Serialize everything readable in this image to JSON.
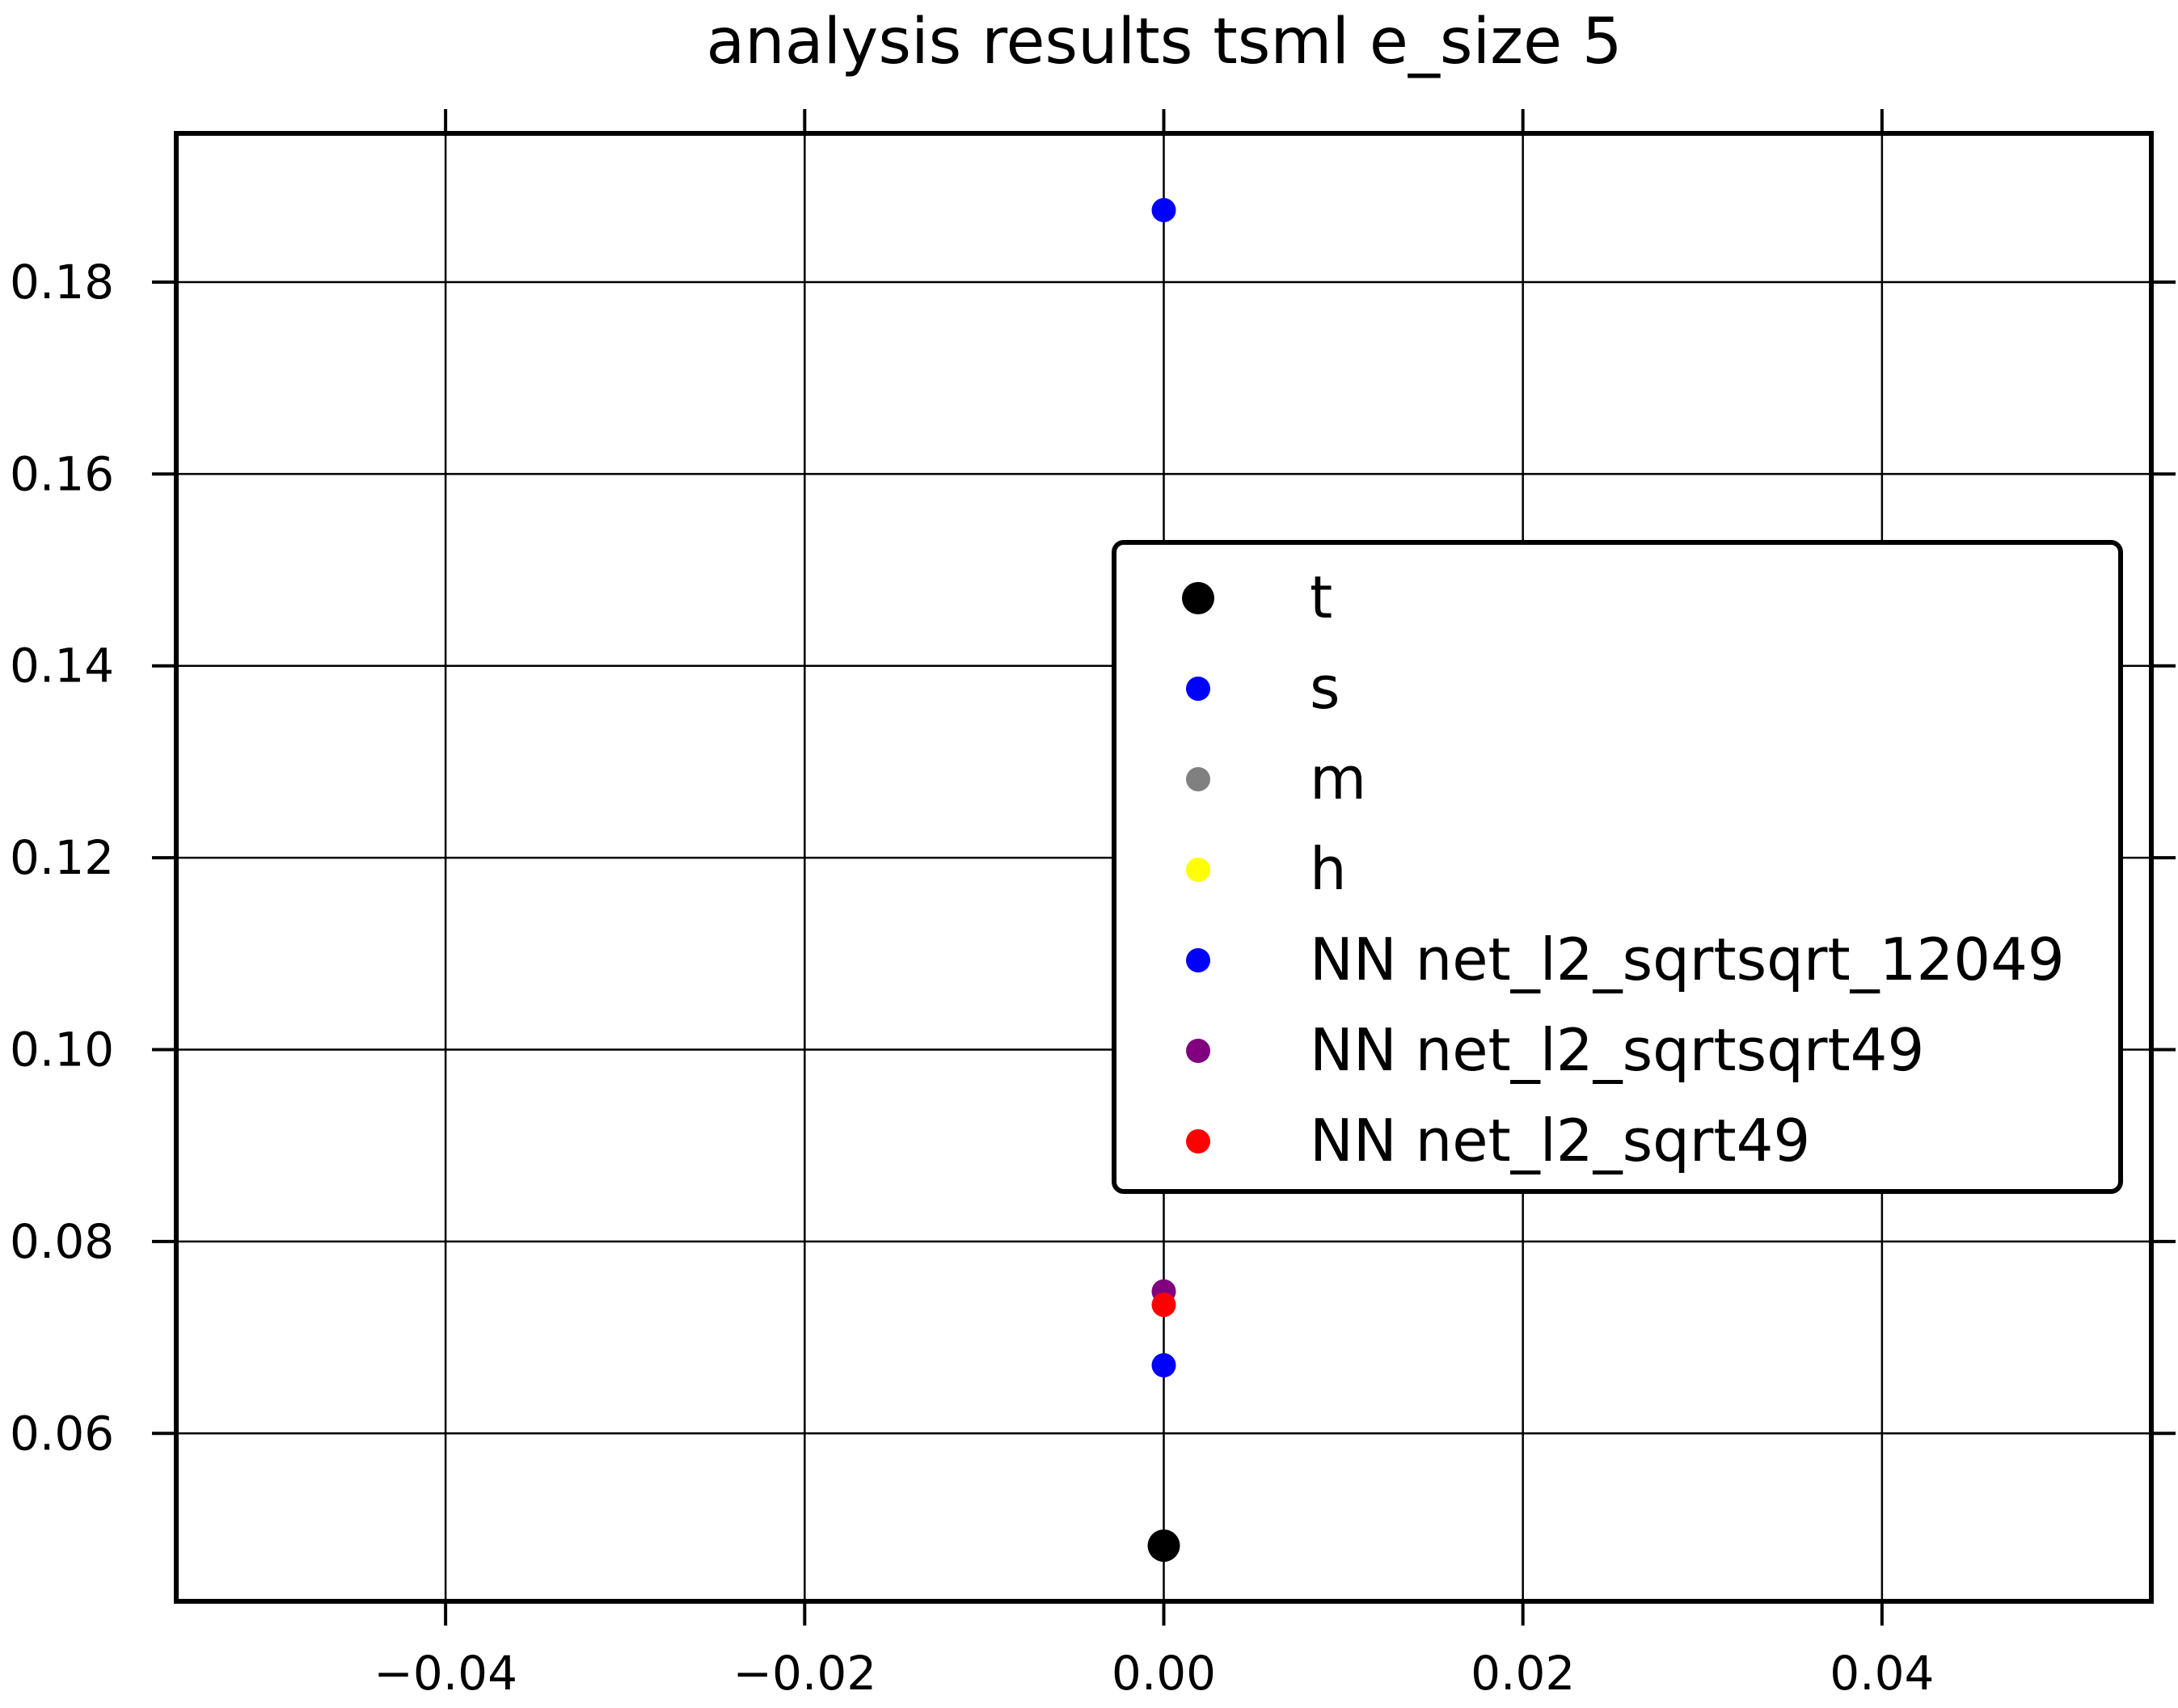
{
  "chart_data": {
    "type": "scatter",
    "title": "analysis results tsml  e_size 5",
    "xlabel": "",
    "ylabel": "",
    "xlim": [
      -0.055,
      0.055
    ],
    "ylim": [
      0.0425,
      0.1955
    ],
    "xticks": [
      {
        "value": -0.04,
        "label": "−0.04"
      },
      {
        "value": -0.02,
        "label": "−0.02"
      },
      {
        "value": 0.0,
        "label": "0.00"
      },
      {
        "value": 0.02,
        "label": "0.02"
      },
      {
        "value": 0.04,
        "label": "0.04"
      }
    ],
    "yticks": [
      {
        "value": 0.06,
        "label": "0.06"
      },
      {
        "value": 0.08,
        "label": "0.08"
      },
      {
        "value": 0.1,
        "label": "0.10"
      },
      {
        "value": 0.12,
        "label": "0.12"
      },
      {
        "value": 0.14,
        "label": "0.14"
      },
      {
        "value": 0.16,
        "label": "0.16"
      },
      {
        "value": 0.18,
        "label": "0.18"
      }
    ],
    "grid": true,
    "legend_position": "center-right",
    "series": [
      {
        "name": "t",
        "color": "#000000",
        "marker": "large",
        "points": [
          {
            "x": 0.0,
            "y": 0.0483
          }
        ]
      },
      {
        "name": "s",
        "color": "#0000ff",
        "marker": "small",
        "points": [
          {
            "x": 0.0,
            "y": 0.1875
          }
        ]
      },
      {
        "name": "m",
        "color": "#808080",
        "marker": "small",
        "points": []
      },
      {
        "name": "h",
        "color": "#ffff00",
        "marker": "small",
        "points": []
      },
      {
        "name": "NN net_l2_sqrtsqrt_12049",
        "color": "#0000ff",
        "marker": "small",
        "points": [
          {
            "x": 0.0,
            "y": 0.0671
          }
        ]
      },
      {
        "name": "NN net_l2_sqrtsqrt49",
        "color": "#800080",
        "marker": "small",
        "points": [
          {
            "x": 0.0,
            "y": 0.0748
          }
        ]
      },
      {
        "name": "NN net_l2_sqrt49",
        "color": "#ff0000",
        "marker": "small",
        "points": [
          {
            "x": 0.0,
            "y": 0.0734
          }
        ]
      }
    ]
  }
}
